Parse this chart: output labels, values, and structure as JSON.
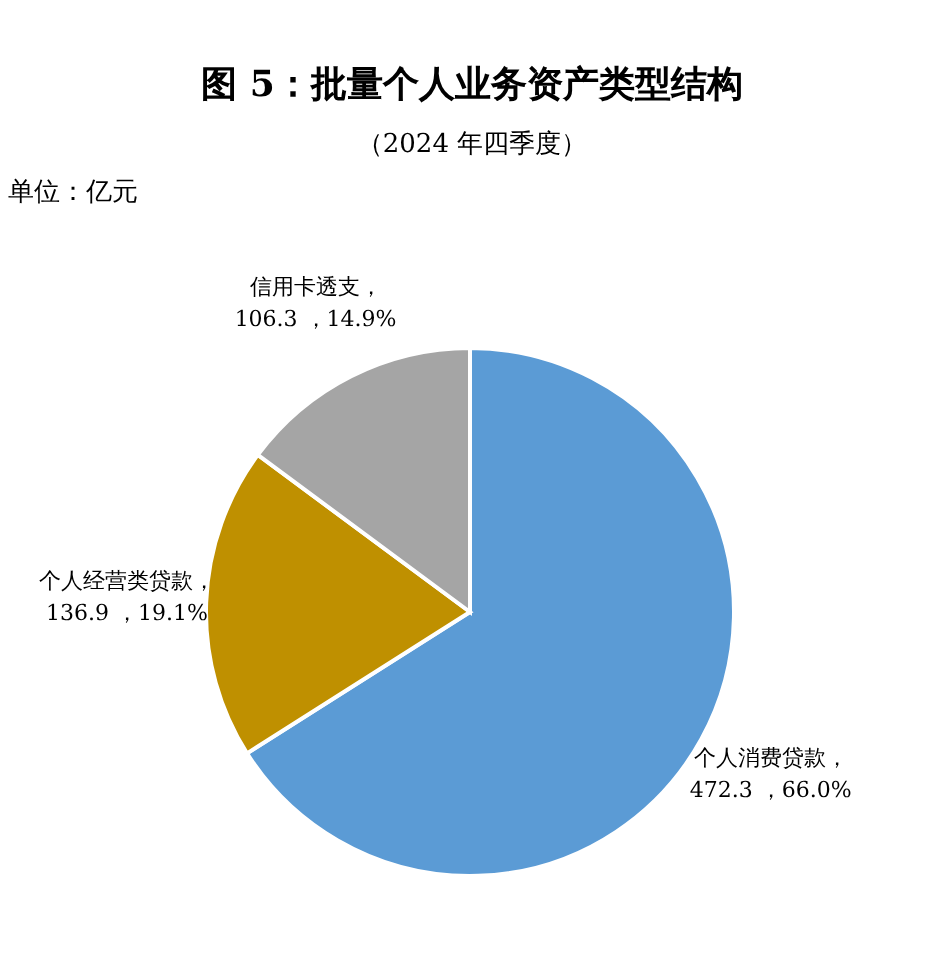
{
  "chart_data": {
    "type": "pie",
    "title": "图 5：批量个人业务资产类型结构",
    "subtitle": "（2024 年四季度）",
    "annotations": [
      "单位：亿元"
    ],
    "categories": [
      "个人消费贷款",
      "个人经营类贷款",
      "信用卡透支"
    ],
    "values": [
      472.3,
      136.9,
      106.3
    ],
    "colors": [
      "#5b9bd5",
      "#bf9000",
      "#a5a5a5"
    ],
    "value_labels": [
      "，\n472.3 ，66.0%",
      "，\n136.9 ，19.1%",
      "，\n106.3 ，14.9%"
    ]
  }
}
